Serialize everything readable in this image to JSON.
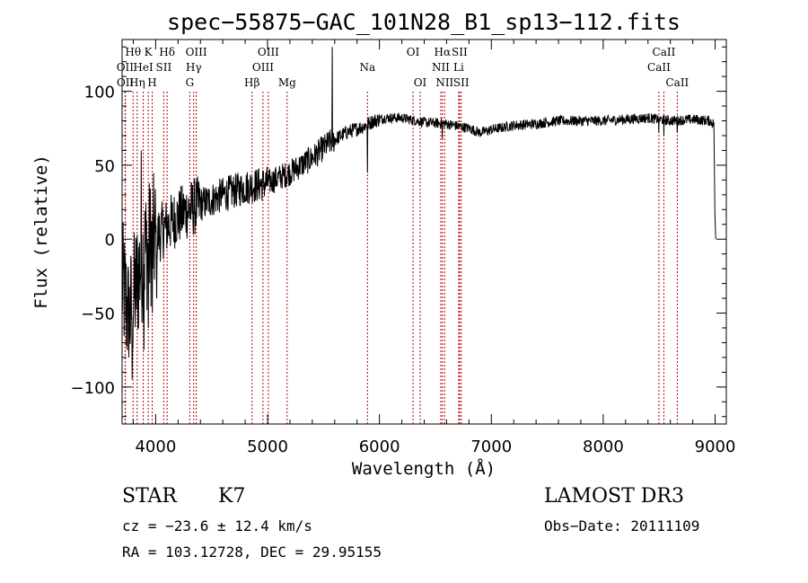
{
  "chart_data": {
    "type": "line",
    "title": "spec−55875−GAC_101N28_B1_sp13−112.fits",
    "xlabel": "Wavelength (Å)",
    "ylabel": "Flux (relative)",
    "xlim": [
      3700,
      9100
    ],
    "ylim": [
      -125,
      135
    ],
    "xticks": [
      4000,
      5000,
      6000,
      7000,
      8000,
      9000
    ],
    "yticks": [
      -100,
      -50,
      0,
      50,
      100
    ],
    "ytick_labels": [
      "−100",
      "−50",
      "0",
      "50",
      "100"
    ],
    "grid": false,
    "series": [
      {
        "name": "flux",
        "anchors_x": [
          3700,
          3730,
          3760,
          3790,
          3830,
          3870,
          3920,
          3980,
          4050,
          4150,
          4250,
          4350,
          4450,
          4600,
          4800,
          5000,
          5200,
          5400,
          5550,
          5700,
          5850,
          5950,
          6050,
          6200,
          6400,
          6600,
          6800,
          6900,
          7000,
          7200,
          7400,
          7600,
          7800,
          8000,
          8200,
          8400,
          8600,
          8800,
          8950,
          8990,
          9000
        ],
        "anchors_y": [
          -30,
          -40,
          -55,
          -45,
          -30,
          -15,
          -5,
          0,
          5,
          12,
          18,
          22,
          25,
          30,
          35,
          38,
          45,
          55,
          65,
          72,
          76,
          80,
          82,
          82,
          79,
          78,
          75,
          72,
          74,
          77,
          78,
          80,
          80,
          80,
          81,
          82,
          80,
          81,
          80,
          78,
          0
        ],
        "features": [
          {
            "x": 3760,
            "y": -80
          },
          {
            "x": 3790,
            "y": -95
          },
          {
            "x": 3870,
            "y": 60
          },
          {
            "x": 3895,
            "y": -75
          },
          {
            "x": 3935,
            "y": -60
          },
          {
            "x": 3970,
            "y": -50
          },
          {
            "x": 4010,
            "y": -40
          },
          {
            "x": 5577,
            "y": 130
          },
          {
            "x": 5893,
            "y": 45
          },
          {
            "x": 6563,
            "y": 68
          },
          {
            "x": 8498,
            "y": 72
          },
          {
            "x": 8542,
            "y": 70
          },
          {
            "x": 8662,
            "y": 72
          },
          {
            "x": 9005,
            "y": 0
          }
        ]
      }
    ],
    "lines": [
      {
        "rows": [
          {
            "label": "Hθ",
            "wl": 3798
          },
          {
            "label": "OII",
            "wl": 3727
          },
          {
            "label": "OII",
            "wl": 3729
          }
        ]
      },
      {
        "rows": [
          {
            "label": "K",
            "wl": 3934
          },
          {
            "label": "HeI",
            "wl": 3889
          },
          {
            "label": "Hη",
            "wl": 3835
          }
        ]
      },
      {
        "rows": [
          {
            "label": "Hδ",
            "wl": 4102
          },
          {
            "label": "SII",
            "wl": 4072
          },
          {
            "label": "H",
            "wl": 3969
          }
        ]
      },
      {
        "rows": [
          {
            "label": "OIII",
            "wl": 4363
          },
          {
            "label": "Hγ",
            "wl": 4340
          },
          {
            "label": "G",
            "wl": 4305
          }
        ]
      },
      {
        "rows": [
          {
            "label": "OIII",
            "wl": 5007
          },
          {
            "label": "OIII",
            "wl": 4959
          },
          {
            "label": "Hβ",
            "wl": 4861
          }
        ]
      },
      {
        "rows": [
          {
            "label": "",
            "wl": 5175
          },
          {
            "label": "",
            "wl": 5175
          },
          {
            "label": "Mg",
            "wl": 5175
          }
        ]
      },
      {
        "rows": [
          {
            "label": "",
            "wl": 5893
          },
          {
            "label": "Na",
            "wl": 5893
          },
          {
            "label": "",
            "wl": 5893
          }
        ]
      },
      {
        "rows": [
          {
            "label": "OI",
            "wl": 6300
          },
          {
            "label": "",
            "wl": 6300
          },
          {
            "label": "OI",
            "wl": 6364
          }
        ]
      },
      {
        "rows": [
          {
            "label": "Hα",
            "wl": 6563
          },
          {
            "label": "NII",
            "wl": 6548
          },
          {
            "label": "NII",
            "wl": 6583
          }
        ]
      },
      {
        "rows": [
          {
            "label": "SII",
            "wl": 6716
          },
          {
            "label": "Li",
            "wl": 6708
          },
          {
            "label": "SII",
            "wl": 6731
          }
        ]
      },
      {
        "rows": [
          {
            "label": "CaII",
            "wl": 8542
          },
          {
            "label": "CaII",
            "wl": 8498
          },
          {
            "label": "CaII",
            "wl": 8662
          }
        ]
      }
    ]
  },
  "info": {
    "object_class": "STAR",
    "subclass": "K7",
    "survey": "LAMOST DR3",
    "cz": "cz = −23.6 ± 12.4 km/s",
    "obs_date": "Obs−Date: 20111109",
    "coords": "RA = 103.12728, DEC =  29.95155"
  },
  "colors": {
    "axis": "#000000",
    "spectrum": "#000000",
    "line_marker": "#c00000",
    "background": "#ffffff"
  }
}
